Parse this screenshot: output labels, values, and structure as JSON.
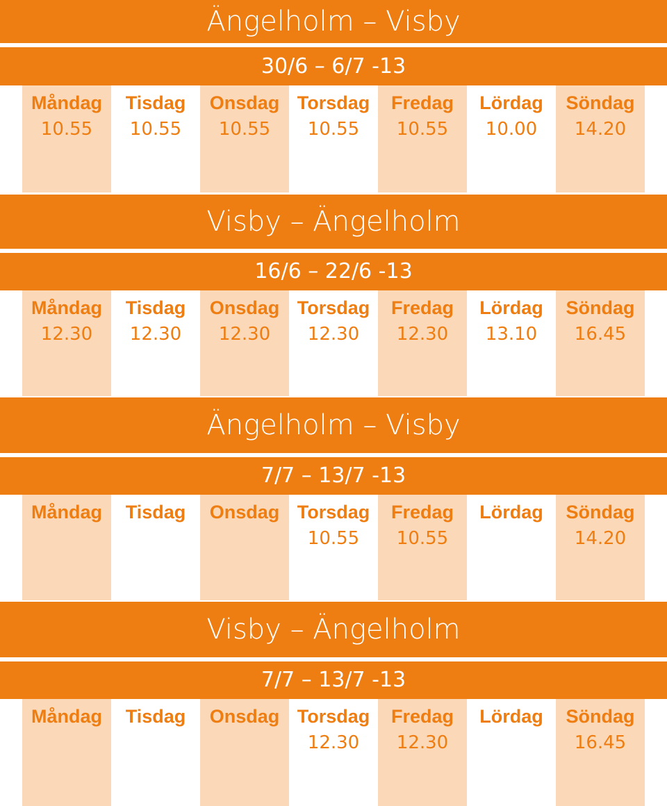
{
  "colors": {
    "accent": "#ee7d12",
    "shade": "#fbd8b7",
    "background": "#ffffff"
  },
  "days": [
    "Måndag",
    "Tisdag",
    "Onsdag",
    "Torsdag",
    "Fredag",
    "Lördag",
    "Söndag"
  ],
  "tables": [
    {
      "route": "Ängelholm – Visby",
      "dates": "30/6 – 6/7 -13",
      "times": [
        "10.55",
        "10.55",
        "10.55",
        "10.55",
        "10.55",
        "10.00",
        "14.20"
      ]
    },
    {
      "route": "Visby – Ängelholm",
      "dates": "16/6 – 22/6 -13",
      "times": [
        "12.30",
        "12.30",
        "12.30",
        "12.30",
        "12.30",
        "13.10",
        "16.45"
      ]
    },
    {
      "route": "Ängelholm – Visby",
      "dates": "7/7 – 13/7 -13",
      "times": [
        "",
        "",
        "",
        "10.55",
        "10.55",
        "",
        "14.20"
      ]
    },
    {
      "route": "Visby – Ängelholm",
      "dates": "7/7 – 13/7 -13",
      "times": [
        "",
        "",
        "",
        "12.30",
        "12.30",
        "",
        "16.45"
      ]
    }
  ]
}
